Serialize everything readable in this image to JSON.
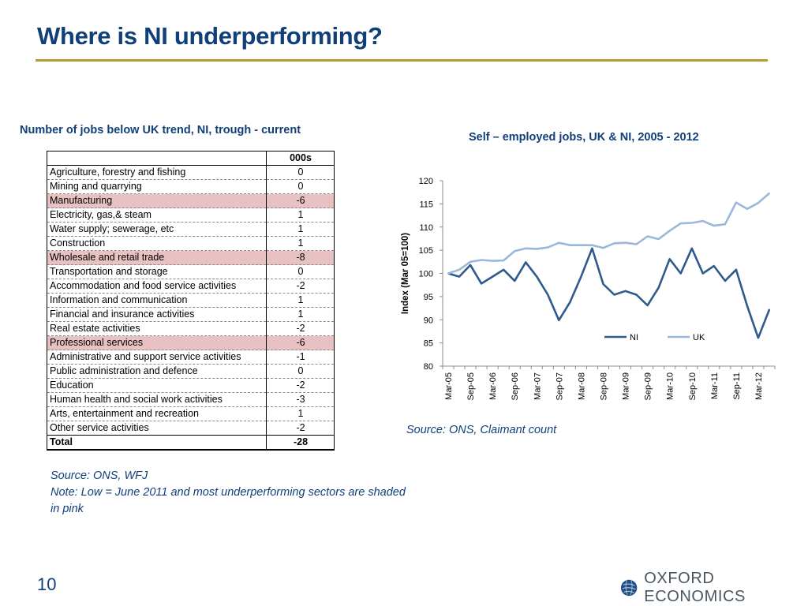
{
  "slide": {
    "title": "Where is NI underperforming?",
    "page_number": "10",
    "logo_text": "OXFORD ECONOMICS"
  },
  "table": {
    "heading": "Number of jobs below UK trend, NI, trough - current",
    "column_header": "000s",
    "rows": [
      {
        "sector": "Agriculture, forestry and fishing",
        "value": "0",
        "highlight": false
      },
      {
        "sector": "Mining and quarrying",
        "value": "0",
        "highlight": false
      },
      {
        "sector": "Manufacturing",
        "value": "-6",
        "highlight": true
      },
      {
        "sector": "Electricity, gas,& steam",
        "value": "1",
        "highlight": false
      },
      {
        "sector": "Water supply; sewerage, etc",
        "value": "1",
        "highlight": false
      },
      {
        "sector": "Construction",
        "value": "1",
        "highlight": false
      },
      {
        "sector": "Wholesale and retail trade",
        "value": "-8",
        "highlight": true
      },
      {
        "sector": "Transportation and storage",
        "value": "0",
        "highlight": false
      },
      {
        "sector": "Accommodation and food service activities",
        "value": "-2",
        "highlight": false
      },
      {
        "sector": "Information and communication",
        "value": "1",
        "highlight": false
      },
      {
        "sector": "Financial and insurance activities",
        "value": "1",
        "highlight": false
      },
      {
        "sector": "Real estate activities",
        "value": "-2",
        "highlight": false
      },
      {
        "sector": "Professional services",
        "value": "-6",
        "highlight": true
      },
      {
        "sector": "Administrative and support service activities",
        "value": "-1",
        "highlight": false
      },
      {
        "sector": "Public administration and defence",
        "value": "0",
        "highlight": false
      },
      {
        "sector": "Education",
        "value": "-2",
        "highlight": false
      },
      {
        "sector": "Human health and social work activities",
        "value": "-3",
        "highlight": false
      },
      {
        "sector": "Arts, entertainment and recreation",
        "value": "1",
        "highlight": false
      },
      {
        "sector": "Other service activities",
        "value": "-2",
        "highlight": false
      }
    ],
    "total_label": "Total",
    "total_value": "-28",
    "highlight_color": "#e8c2c3",
    "source_note_line1": "Source: ONS, WFJ",
    "source_note_line2": "Note: Low  = June 2011 and most underperforming sectors are shaded in pink"
  },
  "chart_data": {
    "type": "line",
    "title": "Self – employed jobs, UK & NI, 2005 - 2012",
    "ylabel": "Index (Mar 05=100)",
    "xlabel": "",
    "ylim": [
      80,
      120
    ],
    "yticks": [
      80,
      85,
      90,
      95,
      100,
      105,
      110,
      115,
      120
    ],
    "tick_labels": [
      "Mar-05",
      "Sep-05",
      "Mar-06",
      "Sep-06",
      "Mar-07",
      "Sep-07",
      "Mar-08",
      "Sep-08",
      "Mar-09",
      "Sep-09",
      "Mar-10",
      "Sep-10",
      "Mar-11",
      "Sep-11",
      "Mar-12"
    ],
    "x": [
      "Mar-05",
      "Jun-05",
      "Sep-05",
      "Dec-05",
      "Mar-06",
      "Jun-06",
      "Sep-06",
      "Dec-06",
      "Mar-07",
      "Jun-07",
      "Sep-07",
      "Dec-07",
      "Mar-08",
      "Jun-08",
      "Sep-08",
      "Dec-08",
      "Mar-09",
      "Jun-09",
      "Sep-09",
      "Dec-09",
      "Mar-10",
      "Jun-10",
      "Sep-10",
      "Dec-10",
      "Mar-11",
      "Jun-11",
      "Sep-11",
      "Dec-11",
      "Mar-12",
      "Jun-12"
    ],
    "series": [
      {
        "name": "NI",
        "color": "#2e5a8c",
        "values": [
          100,
          99.3,
          101.8,
          97.8,
          99.3,
          100.8,
          98.4,
          102.4,
          99.3,
          95.4,
          89.9,
          93.8,
          99.3,
          105.4,
          97.7,
          95.4,
          96.2,
          95.4,
          93.1,
          96.9,
          103.1,
          100.0,
          105.4,
          100.0,
          101.6,
          98.4,
          100.8,
          93.0,
          86.1,
          92.2
        ]
      },
      {
        "name": "UK",
        "color": "#9bb7d9",
        "values": [
          100,
          100.8,
          102.5,
          102.9,
          102.7,
          102.8,
          104.8,
          105.4,
          105.3,
          105.6,
          106.6,
          106.1,
          106.1,
          106.1,
          105.5,
          106.5,
          106.6,
          106.3,
          108.0,
          107.4,
          109.2,
          110.8,
          110.9,
          111.3,
          110.3,
          110.6,
          115.3,
          113.9,
          115.2,
          117.3
        ]
      }
    ],
    "legend_position": "inside-bottom",
    "grid": false,
    "source": "Source: ONS, Claimant count"
  }
}
